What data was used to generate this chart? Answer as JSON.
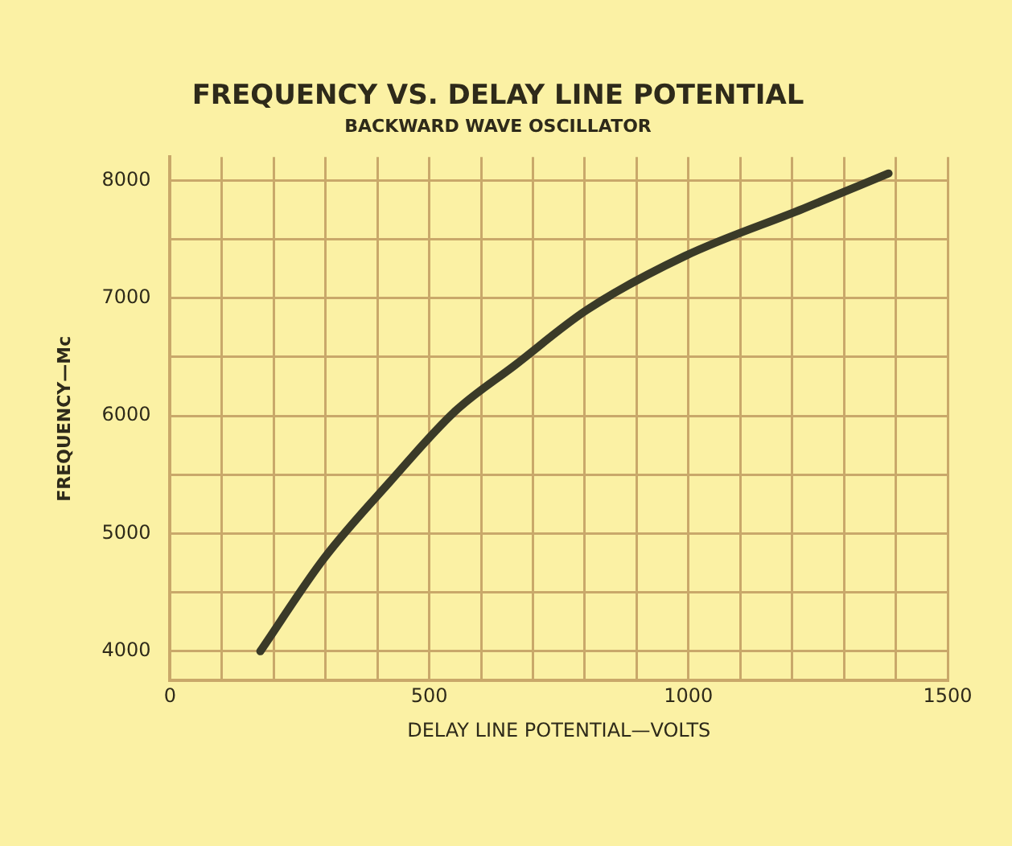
{
  "chart_data": {
    "type": "line",
    "title": "FREQUENCY VS. DELAY LINE POTENTIAL",
    "subtitle": "BACKWARD WAVE OSCILLATOR",
    "xlabel": "DELAY LINE POTENTIAL—VOLTS",
    "ylabel": "FREQUENCY—Mc",
    "series": [
      {
        "color": "#3a3a28",
        "x": [
          174,
          297,
          424,
          550,
          665,
          804,
          994,
          1221,
          1386
        ],
        "values": [
          4000,
          4790,
          5440,
          6040,
          6430,
          6900,
          7360,
          7760,
          8060
        ]
      }
    ],
    "xlim": [
      0,
      1500
    ],
    "ylim": [
      3750,
      8200
    ],
    "xticks": [
      0,
      {
        "value": 100,
        "label": null
      },
      {
        "value": 200,
        "label": null
      },
      {
        "value": 300,
        "label": null
      },
      {
        "value": 400,
        "label": null
      },
      500,
      {
        "value": 600,
        "label": null
      },
      {
        "value": 700,
        "label": null
      },
      {
        "value": 800,
        "label": null
      },
      {
        "value": 900,
        "label": null
      },
      1000,
      {
        "value": 1100,
        "label": null
      },
      {
        "value": 1200,
        "label": null
      },
      {
        "value": 1300,
        "label": null
      },
      {
        "value": 1400,
        "label": null
      },
      1500
    ],
    "yticks": [
      4000,
      {
        "value": 4500,
        "label": null
      },
      5000,
      {
        "value": 5500,
        "label": null
      },
      6000,
      {
        "value": 6500,
        "label": null
      },
      7000,
      {
        "value": 7500,
        "label": null
      },
      8000
    ],
    "grid": true,
    "marker": "none",
    "line_style": "solid",
    "legend": false
  }
}
